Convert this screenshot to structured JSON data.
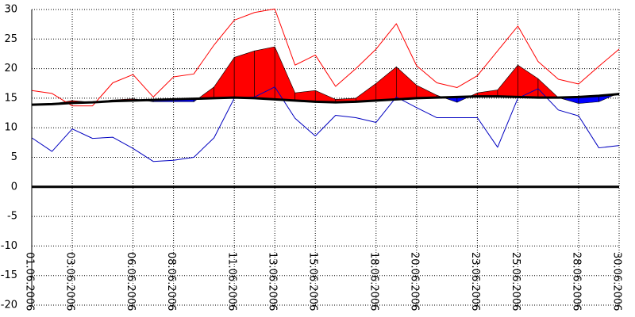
{
  "chart_data": {
    "type": "line",
    "title": "",
    "xlabel": "",
    "ylabel": "",
    "ylim": [
      -20,
      30
    ],
    "xlim": [
      "2006-06-01",
      "2006-06-30"
    ],
    "y_ticks": [
      30,
      25,
      20,
      15,
      10,
      5,
      0,
      -5,
      -10,
      -15,
      -20
    ],
    "x_tick_labels": [
      "01.06.2006",
      "03.06.2006",
      "06.06.2006",
      "08.06.2006",
      "11.06.2006",
      "13.06.2006",
      "15.06.2006",
      "18.06.2006",
      "20.06.2006",
      "23.06.2006",
      "25.06.2006",
      "28.06.2006",
      "30.06.2006"
    ],
    "x_tick_dates": [
      "2006-06-01",
      "2006-06-03",
      "2006-06-06",
      "2006-06-08",
      "2006-06-11",
      "2006-06-13",
      "2006-06-15",
      "2006-06-18",
      "2006-06-20",
      "2006-06-23",
      "2006-06-25",
      "2006-06-28",
      "2006-06-30"
    ],
    "grid": true,
    "grid_style": "dotted",
    "legend": "none",
    "x": [
      "2006-06-01",
      "2006-06-02",
      "2006-06-03",
      "2006-06-04",
      "2006-06-05",
      "2006-06-06",
      "2006-06-07",
      "2006-06-08",
      "2006-06-09",
      "2006-06-10",
      "2006-06-11",
      "2006-06-12",
      "2006-06-13",
      "2006-06-14",
      "2006-06-15",
      "2006-06-16",
      "2006-06-17",
      "2006-06-18",
      "2006-06-19",
      "2006-06-20",
      "2006-06-21",
      "2006-06-22",
      "2006-06-23",
      "2006-06-24",
      "2006-06-25",
      "2006-06-26",
      "2006-06-27",
      "2006-06-28",
      "2006-06-29",
      "2006-06-30"
    ],
    "series": [
      {
        "role": "daily-max",
        "color": "#ff0000",
        "values": [
          16.3,
          15.8,
          13.7,
          13.7,
          17.6,
          19.0,
          15.2,
          18.6,
          19.1,
          24.0,
          28.2,
          29.5,
          30.1,
          20.6,
          22.3,
          17.0,
          20.0,
          23.3,
          27.6,
          20.5,
          17.6,
          16.8,
          18.8,
          23.0,
          27.2,
          21.2,
          18.2,
          17.4,
          20.4,
          23.3
        ]
      },
      {
        "role": "daily-mean",
        "color": "#ff0000",
        "values": [
          13.9,
          14.0,
          14.6,
          14.3,
          14.7,
          14.9,
          14.4,
          14.4,
          14.4,
          16.9,
          21.9,
          23.0,
          23.7,
          15.9,
          16.3,
          14.8,
          15.0,
          17.5,
          20.3,
          17.2,
          15.5,
          14.3,
          15.9,
          16.4,
          20.6,
          18.3,
          15.1,
          14.1,
          14.4,
          15.9
        ]
      },
      {
        "role": "daily-min",
        "color": "#0000c0",
        "values": [
          8.3,
          6.0,
          9.8,
          8.2,
          8.4,
          6.5,
          4.3,
          4.5,
          5.0,
          8.3,
          15.0,
          15.2,
          16.9,
          11.6,
          8.6,
          12.1,
          11.7,
          10.9,
          15.2,
          13.4,
          11.7,
          11.7,
          11.7,
          6.7,
          15.0,
          16.6,
          13.0,
          12.0,
          6.6,
          7.0
        ]
      },
      {
        "role": "long-term-mean",
        "color": "#000000",
        "values": [
          13.9,
          14.0,
          14.2,
          14.3,
          14.5,
          14.6,
          14.7,
          14.8,
          14.9,
          15.0,
          15.1,
          15.0,
          14.8,
          14.6,
          14.4,
          14.3,
          14.4,
          14.6,
          14.8,
          15.0,
          15.1,
          15.2,
          15.3,
          15.3,
          15.2,
          15.1,
          15.1,
          15.2,
          15.4,
          15.7
        ]
      }
    ],
    "fills": {
      "above_mean": "#ff0000",
      "below_mean": "#0000ff"
    },
    "zero_line": {
      "value": 0,
      "color": "#000000"
    }
  }
}
